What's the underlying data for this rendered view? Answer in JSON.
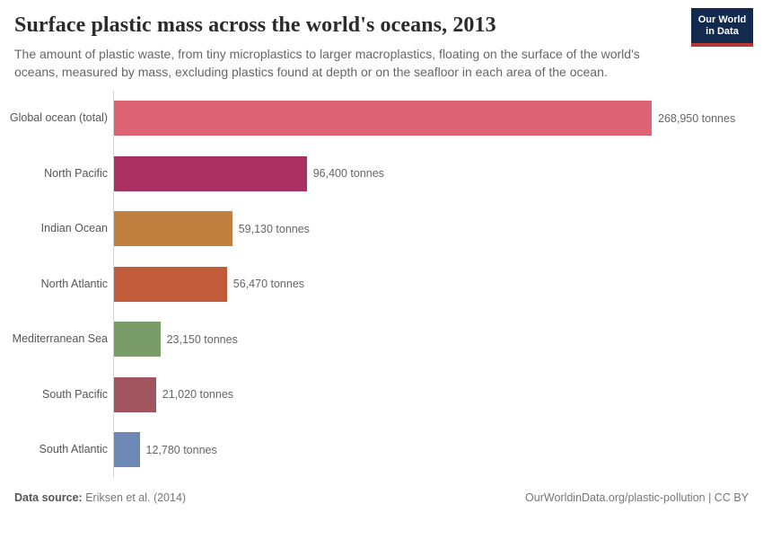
{
  "header": {
    "title": "Surface plastic mass across the world's oceans, 2013",
    "subtitle": "The amount of plastic waste, from tiny microplastics to larger macroplastics, floating on the surface of the world's oceans, measured by mass, excluding plastics found at depth or on the seafloor in each area of the ocean.",
    "logo": {
      "line1": "Our World",
      "line2": "in Data"
    }
  },
  "chart_data": {
    "type": "bar",
    "orientation": "horizontal",
    "title": "Surface plastic mass across the world's oceans, 2013",
    "unit": "tonnes",
    "categories": [
      "Global ocean (total)",
      "North Pacific",
      "Indian Ocean",
      "North Atlantic",
      "Mediterranean Sea",
      "South Pacific",
      "South Atlantic"
    ],
    "values": [
      268950,
      96400,
      59130,
      56470,
      23150,
      21020,
      12780
    ],
    "value_labels": [
      "268,950 tonnes",
      "96,400 tonnes",
      "59,130 tonnes",
      "56,470 tonnes",
      "23,150 tonnes",
      "21,020 tonnes",
      "12,780 tonnes"
    ],
    "bar_colors": [
      "#dd6475",
      "#aa3162",
      "#bf8040",
      "#c05c3a",
      "#799c68",
      "#a0555f",
      "#6d88b4"
    ],
    "xlim": [
      0,
      268950
    ],
    "grid": false,
    "legend": "none"
  },
  "footer": {
    "source_label": "Data source:",
    "source_value": "Eriksen et al. (2014)",
    "link_text": "OurWorldinData.org/plastic-pollution | CC BY"
  },
  "colors": {
    "logo_bg": "#112a4d",
    "logo_stripe": "#b9352f",
    "axis_line": "#d4d4d4",
    "title_text": "#2b2b2b",
    "subtitle_text": "#666666",
    "label_text": "#555555",
    "value_text": "#666666"
  }
}
